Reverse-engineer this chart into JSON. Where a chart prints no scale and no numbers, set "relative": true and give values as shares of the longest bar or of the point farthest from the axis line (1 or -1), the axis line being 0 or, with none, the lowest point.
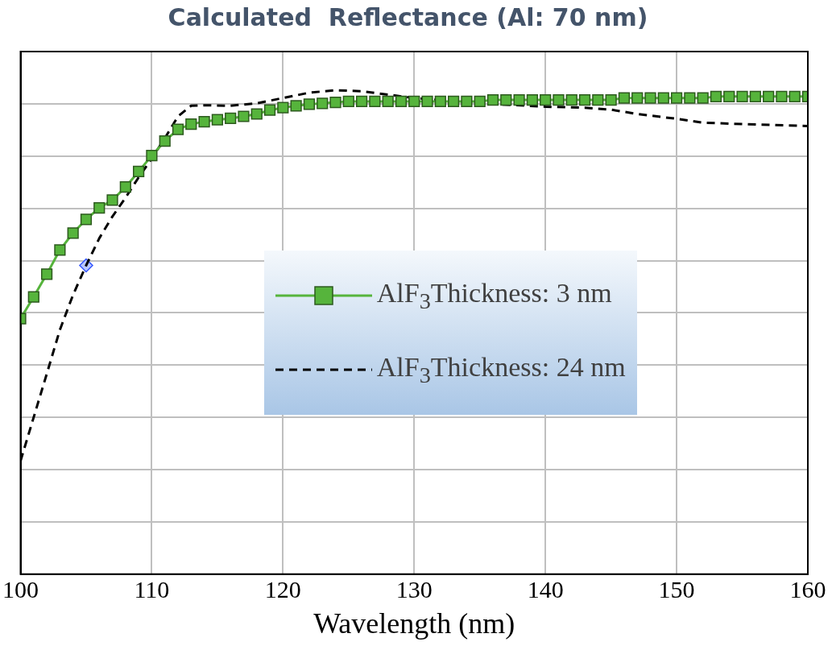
{
  "chart_data": {
    "type": "line",
    "title": "Calculated  Reflectance (Al: 70 nm)",
    "xlabel": "Wavelength (nm)",
    "relative": true,
    "xlim": [
      100,
      160
    ],
    "xticks": [
      100,
      110,
      120,
      130,
      140,
      150,
      160
    ],
    "grid": true,
    "legend": "center",
    "series": [
      {
        "name": "AlF$_{3}$Thickness: 3 nm",
        "color": "#56b43c",
        "marker": "square",
        "line_style": "solid",
        "x": [
          100,
          101,
          102,
          103,
          104,
          105,
          106,
          107,
          108,
          109,
          110,
          111,
          112,
          113,
          114,
          115,
          116,
          117,
          118,
          119,
          120,
          121,
          122,
          123,
          124,
          125,
          126,
          127,
          128,
          129,
          130,
          131,
          132,
          133,
          134,
          135,
          136,
          137,
          138,
          139,
          140,
          141,
          142,
          143,
          144,
          145,
          146,
          147,
          148,
          149,
          150,
          151,
          152,
          153,
          154,
          155,
          156,
          157,
          158,
          159,
          160
        ],
        "values": [
          0.528,
          0.573,
          0.62,
          0.67,
          0.705,
          0.733,
          0.757,
          0.773,
          0.8,
          0.832,
          0.865,
          0.895,
          0.919,
          0.93,
          0.935,
          0.939,
          0.942,
          0.946,
          0.951,
          0.959,
          0.964,
          0.968,
          0.971,
          0.973,
          0.975,
          0.977,
          0.977,
          0.977,
          0.977,
          0.977,
          0.977,
          0.977,
          0.977,
          0.977,
          0.977,
          0.977,
          0.98,
          0.98,
          0.98,
          0.98,
          0.98,
          0.98,
          0.98,
          0.98,
          0.98,
          0.98,
          0.984,
          0.984,
          0.984,
          0.984,
          0.984,
          0.984,
          0.984,
          0.987,
          0.987,
          0.987,
          0.987,
          0.987,
          0.987,
          0.987,
          0.987
        ]
      },
      {
        "name": "AlF$_{3}$Thickness: 24 nm",
        "color": "#000000",
        "marker": "none",
        "line_style": "dashed",
        "x": [
          100,
          101,
          102,
          103,
          104,
          105,
          106,
          107,
          108,
          109,
          110,
          111,
          112,
          113,
          114,
          116,
          118,
          120,
          122,
          124,
          126,
          128,
          130,
          135,
          140,
          143,
          145,
          147,
          150,
          152,
          155,
          160
        ],
        "values": [
          0.234,
          0.324,
          0.414,
          0.505,
          0.577,
          0.638,
          0.694,
          0.739,
          0.778,
          0.82,
          0.859,
          0.901,
          0.946,
          0.968,
          0.969,
          0.968,
          0.973,
          0.984,
          0.995,
          1,
          0.998,
          0.991,
          0.984,
          0.973,
          0.966,
          0.964,
          0.96,
          0.951,
          0.941,
          0.933,
          0.93,
          0.926
        ]
      },
      {
        "type": "scatter",
        "color": "#3355ff",
        "marker": "diamond",
        "x": [
          105
        ],
        "values": [
          0.638
        ]
      }
    ]
  }
}
